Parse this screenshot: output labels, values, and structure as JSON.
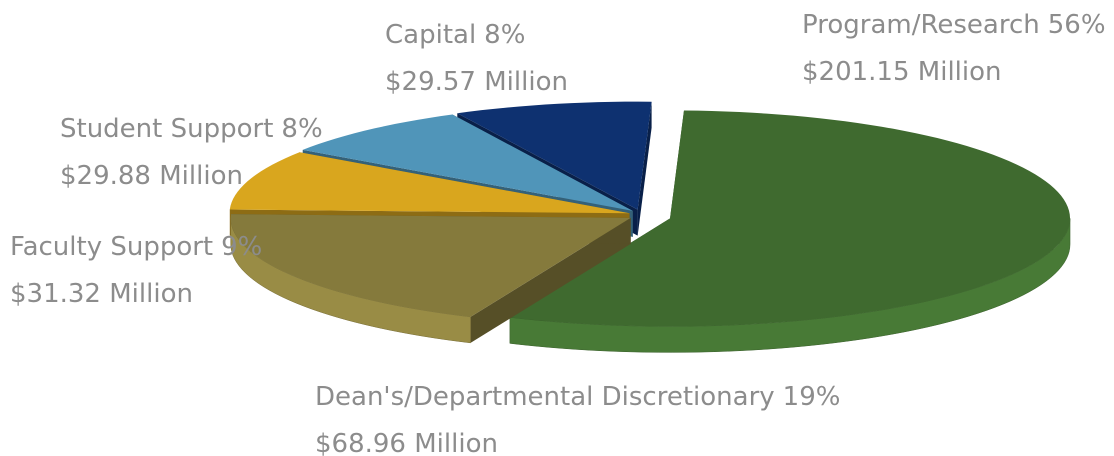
{
  "chart_data": {
    "type": "pie",
    "categories": [
      "Program/Research",
      "Dean's/Departmental Discretionary",
      "Faculty Support",
      "Student Support",
      "Capital"
    ],
    "values": [
      56,
      19,
      9,
      8,
      8
    ],
    "value_labels": [
      "56%",
      "19%",
      "9%",
      "8%",
      "8%"
    ],
    "details": [
      "$201.15 Million",
      "$68.96 Million",
      "$31.32 Million",
      "$29.88 Million",
      "$29.57 Million"
    ],
    "colors": [
      "#3f6a2f",
      "#857a3c",
      "#d9a61e",
      "#5095b9",
      "#0e3170"
    ]
  }
}
